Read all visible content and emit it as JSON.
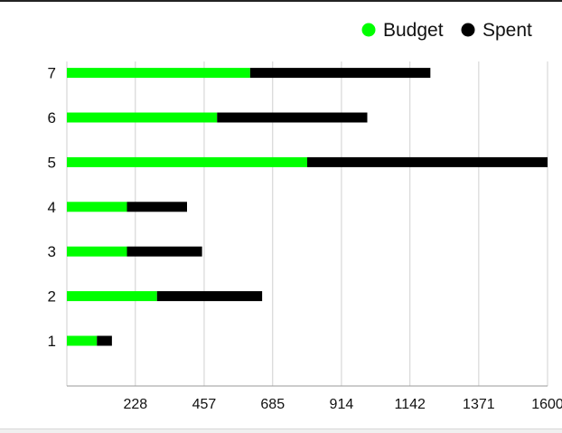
{
  "chart_data": {
    "type": "bar",
    "orientation": "horizontal",
    "stacked": true,
    "categories": [
      "1",
      "2",
      "3",
      "4",
      "5",
      "6",
      "7"
    ],
    "series": [
      {
        "name": "Budget",
        "color": "#00ff00",
        "values": [
          100,
          300,
          200,
          200,
          800,
          500,
          610
        ]
      },
      {
        "name": "Spent",
        "color": "#000000",
        "values": [
          50,
          350,
          250,
          200,
          800,
          500,
          600
        ]
      }
    ],
    "x_ticks": [
      228,
      457,
      685,
      914,
      1142,
      1371,
      1600
    ],
    "xlim": [
      0,
      1600
    ],
    "grid": "vertical",
    "legend": "top-right",
    "title": "",
    "xlabel": "",
    "ylabel": ""
  }
}
